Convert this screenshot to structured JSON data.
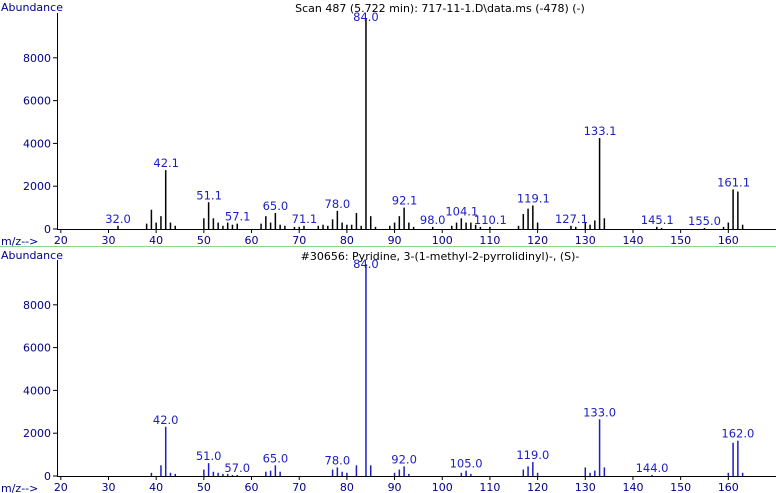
{
  "chart_data": [
    {
      "type": "bar",
      "title": "Scan 487 (5.722 min): 717-11-1.D\\data.ms (-478) (-)",
      "y_label": "Abundance",
      "x_label": "m/z-->",
      "color": "#000000",
      "x": [
        32,
        38,
        39,
        40,
        41,
        42,
        43,
        44,
        50,
        51,
        52,
        53,
        54,
        55,
        56,
        57,
        62,
        63,
        64,
        65,
        66,
        67,
        69,
        70,
        71,
        74,
        75,
        76,
        77,
        78,
        79,
        80,
        81,
        82,
        83,
        84,
        85,
        86,
        89,
        90,
        91,
        92,
        93,
        94,
        98,
        102,
        103,
        104,
        105,
        106,
        107,
        108,
        110,
        116,
        117,
        118,
        119,
        120,
        127,
        128,
        130,
        131,
        132,
        133,
        134,
        145,
        146,
        155,
        159,
        160,
        161,
        162,
        163
      ],
      "values": [
        150,
        250,
        900,
        300,
        600,
        2750,
        300,
        150,
        500,
        1250,
        500,
        300,
        150,
        300,
        200,
        250,
        250,
        600,
        300,
        750,
        200,
        150,
        100,
        100,
        150,
        150,
        200,
        150,
        450,
        850,
        300,
        200,
        200,
        750,
        150,
        9850,
        600,
        100,
        150,
        300,
        600,
        1000,
        300,
        100,
        100,
        150,
        300,
        500,
        300,
        300,
        200,
        100,
        100,
        150,
        700,
        950,
        1100,
        300,
        150,
        100,
        300,
        200,
        400,
        4250,
        500,
        100,
        50,
        50,
        100,
        300,
        1850,
        1750,
        200
      ],
      "annotations": [
        {
          "x": 32.0,
          "label": "32.0"
        },
        {
          "x": 42.1,
          "label": "42.1"
        },
        {
          "x": 51.1,
          "label": "51.1"
        },
        {
          "x": 57.1,
          "label": "57.1"
        },
        {
          "x": 65.0,
          "label": "65.0"
        },
        {
          "x": 71.1,
          "label": "71.1"
        },
        {
          "x": 78.0,
          "label": "78.0"
        },
        {
          "x": 84.0,
          "label": "84.0"
        },
        {
          "x": 92.1,
          "label": "92.1"
        },
        {
          "x": 98.0,
          "label": "98.0"
        },
        {
          "x": 104.1,
          "label": "104.1"
        },
        {
          "x": 110.1,
          "label": "110.1"
        },
        {
          "x": 119.1,
          "label": "119.1"
        },
        {
          "x": 127.1,
          "label": "127.1"
        },
        {
          "x": 133.1,
          "label": "133.1"
        },
        {
          "x": 145.1,
          "label": "145.1"
        },
        {
          "x": 155.0,
          "label": "155.0"
        },
        {
          "x": 161.1,
          "label": "161.1"
        }
      ],
      "xlim": [
        19.2,
        170
      ],
      "xticks": [
        20,
        30,
        40,
        50,
        60,
        70,
        80,
        90,
        100,
        110,
        120,
        130,
        140,
        150,
        160
      ],
      "ylim": [
        0,
        10000
      ],
      "yticks": [
        0,
        2000,
        4000,
        6000,
        8000
      ]
    },
    {
      "type": "bar",
      "title": "#30656: Pyridine, 3-(1-methyl-2-pyrrolidinyl)-, (S)-",
      "y_label": "Abundance",
      "x_label": "m/z-->",
      "color": "#1c1cc8",
      "x": [
        39,
        41,
        42,
        43,
        44,
        50,
        51,
        52,
        53,
        54,
        55,
        56,
        57,
        63,
        64,
        65,
        66,
        77,
        78,
        79,
        80,
        82,
        84,
        85,
        90,
        91,
        92,
        93,
        104,
        105,
        106,
        117,
        118,
        119,
        120,
        130,
        131,
        132,
        133,
        134,
        144,
        160,
        161,
        162,
        163
      ],
      "values": [
        150,
        500,
        2300,
        150,
        100,
        300,
        600,
        200,
        150,
        100,
        100,
        50,
        50,
        200,
        250,
        500,
        200,
        300,
        400,
        200,
        150,
        500,
        9900,
        500,
        150,
        300,
        450,
        100,
        150,
        250,
        100,
        300,
        450,
        650,
        150,
        400,
        150,
        250,
        2650,
        400,
        50,
        150,
        1550,
        1650,
        150
      ],
      "annotations": [
        {
          "x": 42.0,
          "label": "42.0"
        },
        {
          "x": 51.0,
          "label": "51.0"
        },
        {
          "x": 57.0,
          "label": "57.0"
        },
        {
          "x": 65.0,
          "label": "65.0"
        },
        {
          "x": 78.0,
          "label": "78.0"
        },
        {
          "x": 84.0,
          "label": "84.0"
        },
        {
          "x": 92.0,
          "label": "92.0"
        },
        {
          "x": 105.0,
          "label": "105.0"
        },
        {
          "x": 119.0,
          "label": "119.0"
        },
        {
          "x": 133.0,
          "label": "133.0"
        },
        {
          "x": 144.0,
          "label": "144.0"
        },
        {
          "x": 162.0,
          "label": "162.0"
        }
      ],
      "xlim": [
        19.2,
        170
      ],
      "xticks": [
        20,
        30,
        40,
        50,
        60,
        70,
        80,
        90,
        100,
        110,
        120,
        130,
        140,
        150,
        160
      ],
      "ylim": [
        0,
        10000
      ],
      "yticks": [
        0,
        2000,
        4000,
        6000,
        8000
      ]
    }
  ]
}
